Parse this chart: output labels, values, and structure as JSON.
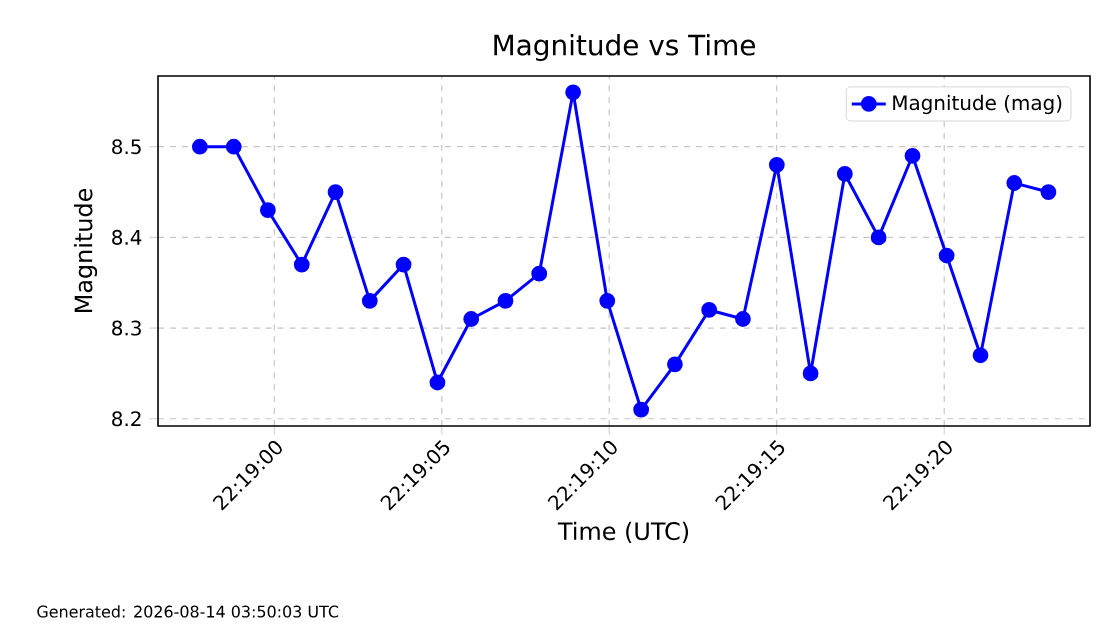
{
  "chart_data": {
    "type": "line",
    "title": "Magnitude vs Time",
    "xlabel": "Time (UTC)",
    "ylabel": "Magnitude",
    "x": [
      22.31605,
      22.316331,
      22.316614,
      22.316895,
      22.317175,
      22.317459,
      22.317739,
      22.31802,
      22.3183,
      22.318584,
      22.318864,
      22.319145,
      22.319428,
      22.319709,
      22.319989,
      22.320273,
      22.320553,
      22.320834,
      22.321114,
      22.321398,
      22.321678,
      22.321959,
      22.322242,
      22.322523,
      22.322803,
      22.323086
    ],
    "series": [
      {
        "name": "Magnitude (mag)",
        "color": "#0000ff",
        "values": [
          8.5,
          8.5,
          8.43,
          8.37,
          8.45,
          8.33,
          8.37,
          8.24,
          8.31,
          8.33,
          8.36,
          8.56,
          8.33,
          8.21,
          8.26,
          8.32,
          8.31,
          8.48,
          8.25,
          8.47,
          8.4,
          8.49,
          8.38,
          8.27,
          8.46,
          8.45
        ]
      }
    ],
    "xlim": [
      22.315703,
      22.323431
    ],
    "xticks": [
      {
        "value": 22.316667,
        "label": "22:19:00"
      },
      {
        "value": 22.318056,
        "label": "22:19:05"
      },
      {
        "value": 22.319444,
        "label": "22:19:10"
      },
      {
        "value": 22.320833,
        "label": "22:19:15"
      },
      {
        "value": 22.322222,
        "label": "22:19:20"
      }
    ],
    "ylim": [
      8.192,
      8.578
    ],
    "yticks": [
      8.2,
      8.3,
      8.4,
      8.5
    ],
    "grid": true,
    "legend": "top right",
    "marker": "circle",
    "line_style": "solid",
    "annotations": [
      "Generated: 2026-08-14 03:50:03 UTC"
    ]
  }
}
